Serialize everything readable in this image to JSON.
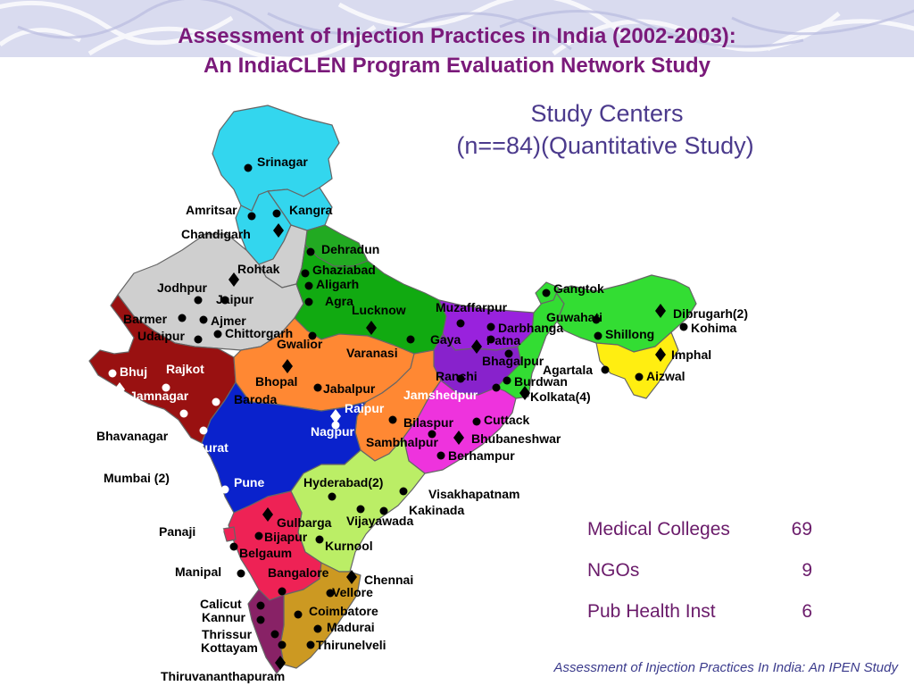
{
  "title": {
    "line1": "Assessment of Injection Practices in India (2002-2003):",
    "line2": "An IndiaCLEN Program Evaluation Network Study"
  },
  "study_centers": {
    "line1": "Study Centers",
    "line2": "(n==84)(Quantitative Study)"
  },
  "stats": [
    {
      "label": "Medical Colleges",
      "value": "69"
    },
    {
      "label": "NGOs",
      "value": "9"
    },
    {
      "label": "Pub Health Inst",
      "value": "6"
    }
  ],
  "footer": "Assessment of Injection Practices In India: An IPEN Study",
  "colors": {
    "title": "#7a1a7a",
    "heading": "#4b3a8c",
    "stats": "#6a1b6a",
    "band": "#c9cbe6",
    "marker": "#000000",
    "marker_white": "#ffffff"
  },
  "map": {
    "regions": [
      {
        "name": "Jammu and Kashmir",
        "color": "#33d6ee"
      },
      {
        "name": "Himachal Pradesh",
        "color": "#33d6ee"
      },
      {
        "name": "Punjab",
        "color": "#33d6ee"
      },
      {
        "name": "Uttaranchal",
        "color": "#22aa22"
      },
      {
        "name": "Haryana",
        "color": "#cfcfcf"
      },
      {
        "name": "Rajasthan",
        "color": "#cfcfcf"
      },
      {
        "name": "Uttar Pradesh",
        "color": "#11aa11"
      },
      {
        "name": "Bihar",
        "color": "#9922dd"
      },
      {
        "name": "Jharkhand",
        "color": "#8822cc"
      },
      {
        "name": "West Bengal",
        "color": "#33dd33"
      },
      {
        "name": "Sikkim",
        "color": "#33dd33"
      },
      {
        "name": "North East",
        "color": "#33dd33"
      },
      {
        "name": "Mizoram Manipur Tripura",
        "color": "#ffee11"
      },
      {
        "name": "Gujarat",
        "color": "#991111"
      },
      {
        "name": "Madhya Pradesh",
        "color": "#ff8833"
      },
      {
        "name": "Chhattisgarh",
        "color": "#ff8833"
      },
      {
        "name": "Orissa",
        "color": "#ee33dd"
      },
      {
        "name": "Maharashtra",
        "color": "#0a22cc"
      },
      {
        "name": "Andhra Pradesh",
        "color": "#bbee66"
      },
      {
        "name": "Karnataka",
        "color": "#ee2255"
      },
      {
        "name": "Goa",
        "color": "#ee2255"
      },
      {
        "name": "Tamil Nadu",
        "color": "#cc9922"
      },
      {
        "name": "Kerala",
        "color": "#882266"
      }
    ],
    "centers": [
      {
        "label": "Srinagar",
        "marker": "dot"
      },
      {
        "label": "Amritsar",
        "marker": "dot"
      },
      {
        "label": "Kangra",
        "marker": "dot"
      },
      {
        "label": "Chandigarh",
        "marker": "diamond"
      },
      {
        "label": "Dehradun",
        "marker": "dot"
      },
      {
        "label": "Rohtak",
        "marker": "diamond"
      },
      {
        "label": "Ghaziabad",
        "marker": "dot"
      },
      {
        "label": "Aligarh",
        "marker": "dot"
      },
      {
        "label": "Agra",
        "marker": "dot"
      },
      {
        "label": "Jodhpur",
        "marker": "dot"
      },
      {
        "label": "Jaipur",
        "marker": "dot"
      },
      {
        "label": "Barmer",
        "marker": "dot"
      },
      {
        "label": "Ajmer",
        "marker": "dot"
      },
      {
        "label": "Udaipur",
        "marker": "dot"
      },
      {
        "label": "Chittorgarh",
        "marker": "dot"
      },
      {
        "label": "Gwalior",
        "marker": "dot"
      },
      {
        "label": "Lucknow",
        "marker": "diamond"
      },
      {
        "label": "Varanasi",
        "marker": "dot"
      },
      {
        "label": "Muzaffarpur",
        "marker": "dot"
      },
      {
        "label": "Darbhanga",
        "marker": "dot"
      },
      {
        "label": "Gaya",
        "marker": "diamond"
      },
      {
        "label": "Patna",
        "marker": "dot"
      },
      {
        "label": "Bhagalpur",
        "marker": "dot"
      },
      {
        "label": "Ranchi",
        "marker": "dot"
      },
      {
        "label": "Burdwan",
        "marker": "dot"
      },
      {
        "label": "Kolkata(4)",
        "marker": "diamond"
      },
      {
        "label": "Jamshedpur",
        "marker": "dot"
      },
      {
        "label": "Gangtok",
        "marker": "dot"
      },
      {
        "label": "Guwahati",
        "marker": "dot"
      },
      {
        "label": "Dibrugarh(2)",
        "marker": "diamond"
      },
      {
        "label": "Shillong",
        "marker": "dot"
      },
      {
        "label": "Kohima",
        "marker": "dot"
      },
      {
        "label": "Imphal",
        "marker": "diamond"
      },
      {
        "label": "Agartala",
        "marker": "dot"
      },
      {
        "label": "Aizwal",
        "marker": "dot"
      },
      {
        "label": "Bhuj",
        "marker": "dot-white"
      },
      {
        "label": "Rajkot",
        "marker": "dot-white"
      },
      {
        "label": "Jamnagar",
        "marker": "diamond-white"
      },
      {
        "label": "Bhavanagar",
        "marker": "dot-white"
      },
      {
        "label": "Surat",
        "marker": "dot-white"
      },
      {
        "label": "Baroda",
        "marker": "dot-white"
      },
      {
        "label": "Bhopal",
        "marker": "diamond"
      },
      {
        "label": "Jabalpur",
        "marker": "dot"
      },
      {
        "label": "Raipur",
        "marker": "diamond-white"
      },
      {
        "label": "Nagpur",
        "marker": "dot-white"
      },
      {
        "label": "Bilaspur",
        "marker": "dot"
      },
      {
        "label": "Cuttack",
        "marker": "dot"
      },
      {
        "label": "Bhubaneshwar",
        "marker": "diamond"
      },
      {
        "label": "Sambhalpur",
        "marker": "dot"
      },
      {
        "label": "Berhampur",
        "marker": "dot"
      },
      {
        "label": "Mumbai (2)",
        "marker": "dot-white"
      },
      {
        "label": "Pune",
        "marker": "dot-white"
      },
      {
        "label": "Hyderabad(2)",
        "marker": "dot"
      },
      {
        "label": "Visakhapatnam",
        "marker": "dot"
      },
      {
        "label": "Kakinada",
        "marker": "dot"
      },
      {
        "label": "Vijayawada",
        "marker": "dot"
      },
      {
        "label": "Kurnool",
        "marker": "dot"
      },
      {
        "label": "Gulbarga",
        "marker": "diamond"
      },
      {
        "label": "Bijapur",
        "marker": "dot"
      },
      {
        "label": "Belgaum",
        "marker": "dot"
      },
      {
        "label": "Panaji",
        "marker": "dot-white"
      },
      {
        "label": "Manipal",
        "marker": "dot"
      },
      {
        "label": "Bangalore",
        "marker": "dot"
      },
      {
        "label": "Chennai",
        "marker": "diamond"
      },
      {
        "label": "Vellore",
        "marker": "dot"
      },
      {
        "label": "Coimbatore",
        "marker": "dot"
      },
      {
        "label": "Madurai",
        "marker": "dot"
      },
      {
        "label": "Thirunelveli",
        "marker": "dot"
      },
      {
        "label": "Calicut",
        "marker": "dot"
      },
      {
        "label": "Kannur",
        "marker": "dot"
      },
      {
        "label": "Thrissur",
        "marker": "dot"
      },
      {
        "label": "Kottayam",
        "marker": "dot"
      },
      {
        "label": "Thiruvananthapuram",
        "marker": "diamond"
      }
    ]
  }
}
